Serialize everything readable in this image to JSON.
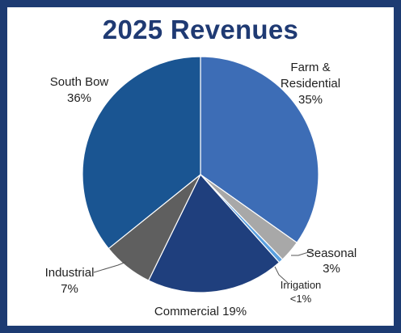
{
  "chart_data": {
    "type": "pie",
    "title": "2025 Revenues",
    "slices": [
      {
        "label_lines": [
          "Farm &",
          "Residential",
          "35%"
        ],
        "value": 35,
        "color": "#3d6db6"
      },
      {
        "label_lines": [
          "Seasonal",
          "3%"
        ],
        "value": 3,
        "color": "#a8a8a8"
      },
      {
        "label_lines": [
          "Irrigation",
          "<1%"
        ],
        "value": 0.6,
        "color": "#5aa0e0"
      },
      {
        "label_lines": [
          "Commercial 19%"
        ],
        "value": 19,
        "color": "#1f3f7d"
      },
      {
        "label_lines": [
          "Industrial",
          "7%"
        ],
        "value": 7,
        "color": "#5f5f5f"
      },
      {
        "label_lines": [
          "South Bow",
          "36%"
        ],
        "value": 36,
        "color": "#1a5592"
      }
    ],
    "legend": "none"
  },
  "colors": {
    "frame": "#1d3b72",
    "title": "#1f3a73"
  }
}
